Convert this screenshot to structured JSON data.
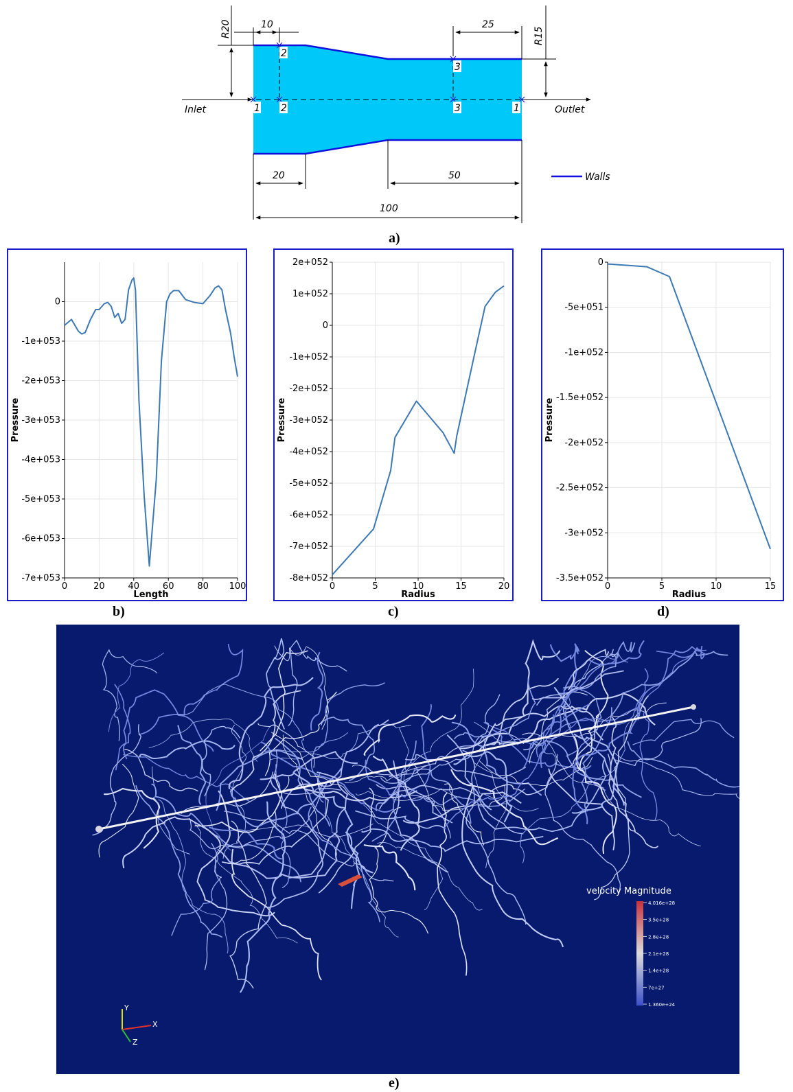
{
  "drawing": {
    "dimensions": {
      "r20": "R20",
      "r15": "R15",
      "d10": "10",
      "d25": "25",
      "d20": "20",
      "d50": "50",
      "d100": "100"
    },
    "labels": {
      "inlet": "Inlet",
      "outlet": "Outlet",
      "walls": "Walls"
    },
    "points": {
      "p1a": "1",
      "p2a": "2",
      "p2b": "2",
      "p3a": "3",
      "p3b": "3",
      "p1b": "1"
    },
    "colors": {
      "fluid": "#00c8f8",
      "wall": "#1010dd"
    }
  },
  "captions": {
    "a": "a)",
    "b": "b)",
    "c": "c)",
    "d": "d)",
    "e": "e)"
  },
  "chart_data": [
    {
      "type": "line",
      "id": "b",
      "xlabel": "Length",
      "ylabel": "Pressure",
      "xlim": [
        0,
        100
      ],
      "ylim": [
        -7e+53,
        1e+53
      ],
      "xticks": [
        0,
        20,
        40,
        60,
        80,
        100
      ],
      "xtick_labels": [
        "0",
        "20",
        "40",
        "60",
        "80",
        "100"
      ],
      "yticks": [
        0,
        -1e+53,
        -2e+53,
        -3e+53,
        -4e+53,
        -5e+53,
        -6e+53,
        -7e+53
      ],
      "ytick_labels": [
        "0",
        "-1e+053",
        "-2e+053",
        "-3e+053",
        "-4e+053",
        "-5e+053",
        "-6e+053",
        "-7e+053"
      ],
      "grid": true,
      "color": "#3c78b4",
      "x": [
        0,
        4,
        8,
        10,
        12,
        15,
        18,
        20,
        23,
        25,
        27,
        29,
        31,
        33,
        35,
        37,
        39,
        40,
        41,
        43,
        46,
        49,
        53,
        56,
        59,
        61,
        63,
        66,
        70,
        75,
        80,
        84,
        87,
        89,
        91,
        93,
        96,
        98,
        100
      ],
      "y": [
        -6e+52,
        -4.5e+52,
        -7.5e+52,
        -8.2e+52,
        -7.8e+52,
        -4.5e+52,
        -2e+52,
        -2e+52,
        -5e+51,
        -2e+51,
        -1.2e+52,
        -4e+52,
        -3e+52,
        -5.5e+52,
        -4.5e+52,
        3e+52,
        5.5e+52,
        6e+52,
        3e+52,
        -2.5e+53,
        -4.9e+53,
        -6.7e+53,
        -4.5e+53,
        -1.5e+53,
        0.0,
        2e+52,
        2.8e+52,
        2.8e+52,
        5e+51,
        -2e+51,
        -5e+51,
        1.5e+52,
        3.5e+52,
        4e+52,
        3e+52,
        -2e+52,
        -8e+52,
        -1.4e+53,
        -1.9e+53
      ]
    },
    {
      "type": "line",
      "id": "c",
      "xlabel": "Radius",
      "ylabel": "Pressure",
      "xlim": [
        0,
        20
      ],
      "ylim": [
        -8e+52,
        2e+52
      ],
      "xticks": [
        0,
        5,
        10,
        15,
        20
      ],
      "xtick_labels": [
        "0",
        "5",
        "10",
        "15",
        "20"
      ],
      "yticks": [
        2e+52,
        1e+52,
        0,
        -1e+52,
        -2e+52,
        -3e+52,
        -4e+52,
        -5e+52,
        -6e+52,
        -7e+52,
        -8e+52
      ],
      "ytick_labels": [
        "2e+052",
        "1e+052",
        "0",
        "-1e+052",
        "-2e+052",
        "-3e+052",
        "-4e+052",
        "-5e+052",
        "-6e+052",
        "-7e+052",
        "-8e+052"
      ],
      "grid": true,
      "color": "#3c78b4",
      "x": [
        0,
        4.8,
        6.8,
        7.3,
        9.8,
        12.9,
        14.2,
        14.5,
        16.5,
        17.8,
        19,
        20
      ],
      "y": [
        -7.9e+52,
        -6.45e+52,
        -4.6e+52,
        -3.55e+52,
        -2.4e+52,
        -3.4e+52,
        -4.05e+52,
        -3.5e+52,
        -1e+52,
        6e+51,
        1.05e+52,
        1.25e+52
      ]
    },
    {
      "type": "line",
      "id": "d",
      "xlabel": "Radius",
      "ylabel": "Pressure",
      "xlim": [
        0,
        15
      ],
      "ylim": [
        -3.5e+52,
        0
      ],
      "xticks": [
        0,
        5,
        10,
        15
      ],
      "xtick_labels": [
        "0",
        "5",
        "10",
        "15"
      ],
      "yticks": [
        0,
        -5e+51,
        -1e+52,
        -1.5e+52,
        -2e+52,
        -2.5e+52,
        -3e+52,
        -3.5e+52
      ],
      "ytick_labels": [
        "0",
        "-5e+051",
        "-1e+052",
        "-1.5e+052",
        "-2e+052",
        "-2.5e+052",
        "-3e+052",
        "-3.5e+052"
      ],
      "grid": true,
      "color": "#3c78b4",
      "x": [
        0,
        3.6,
        5.7,
        15
      ],
      "y": [
        -2e+50,
        -5e+50,
        -1.6e+51,
        -3.18e+52
      ]
    }
  ],
  "render": {
    "colorbar": {
      "title": "velocity Magnitude",
      "labels": [
        "4.016e+28",
        "3.5e+28",
        "2.8e+28",
        "2.1e+28",
        "1.4e+28",
        "7e+27",
        "1.360e+24"
      ],
      "color_top": "#c8323c",
      "color_mid": "#dcdcdc",
      "color_bottom": "#3c50c8"
    },
    "axes": {
      "y": "Y",
      "x": "X",
      "z": "Z"
    },
    "background": "#071a6e"
  }
}
